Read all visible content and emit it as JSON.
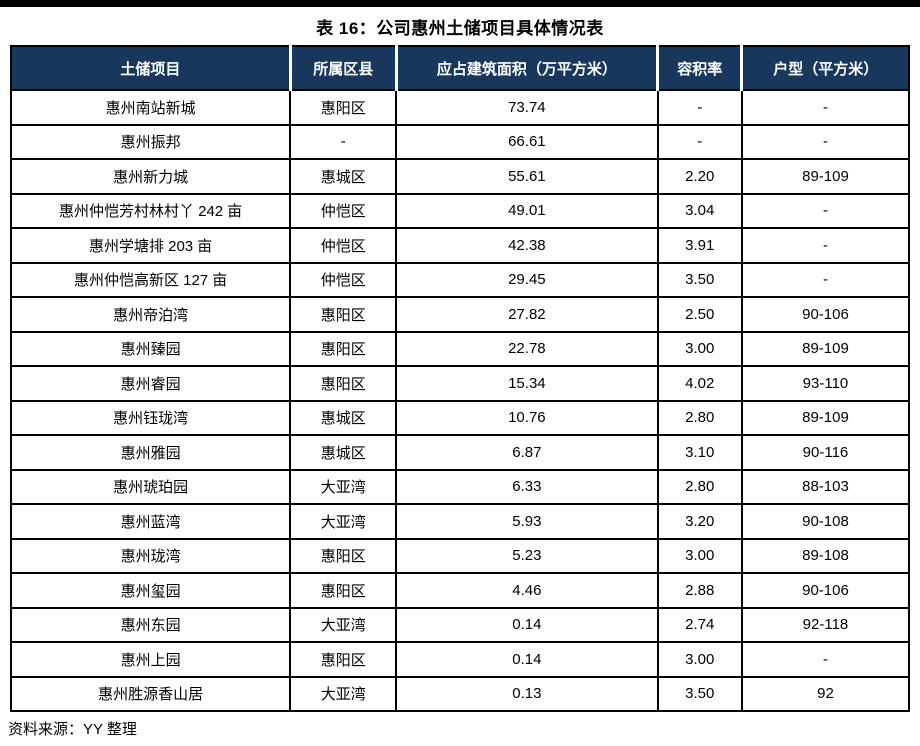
{
  "title": "表 16：公司惠州土储项目具体情况表",
  "source_note": "资料来源：YY 整理",
  "colors": {
    "header_bg": "#17375C",
    "header_text": "#FFFFFF",
    "border": "#000000",
    "rule_bar": "#000000"
  },
  "table": {
    "headers": [
      "土储项目",
      "所属区县",
      "应占建筑面积（万平方米）",
      "容积率",
      "户型（平方米）"
    ],
    "rows": [
      [
        "惠州南站新城",
        "惠阳区",
        "73.74",
        "-",
        "-"
      ],
      [
        "惠州振邦",
        "-",
        "66.61",
        "-",
        "-"
      ],
      [
        "惠州新力城",
        "惠城区",
        "55.61",
        "2.20",
        "89-109"
      ],
      [
        "惠州仲恺芳村林村丫 242 亩",
        "仲恺区",
        "49.01",
        "3.04",
        "-"
      ],
      [
        "惠州学塘排 203 亩",
        "仲恺区",
        "42.38",
        "3.91",
        "-"
      ],
      [
        "惠州仲恺高新区 127 亩",
        "仲恺区",
        "29.45",
        "3.50",
        "-"
      ],
      [
        "惠州帝泊湾",
        "惠阳区",
        "27.82",
        "2.50",
        "90-106"
      ],
      [
        "惠州臻园",
        "惠阳区",
        "22.78",
        "3.00",
        "89-109"
      ],
      [
        "惠州睿园",
        "惠阳区",
        "15.34",
        "4.02",
        "93-110"
      ],
      [
        "惠州钰珑湾",
        "惠城区",
        "10.76",
        "2.80",
        "89-109"
      ],
      [
        "惠州雅园",
        "惠城区",
        "6.87",
        "3.10",
        "90-116"
      ],
      [
        "惠州琥珀园",
        "大亚湾",
        "6.33",
        "2.80",
        "88-103"
      ],
      [
        "惠州蓝湾",
        "大亚湾",
        "5.93",
        "3.20",
        "90-108"
      ],
      [
        "惠州珑湾",
        "惠阳区",
        "5.23",
        "3.00",
        "89-108"
      ],
      [
        "惠州玺园",
        "惠阳区",
        "4.46",
        "2.88",
        "90-106"
      ],
      [
        "惠州东园",
        "大亚湾",
        "0.14",
        "2.74",
        "92-118"
      ],
      [
        "惠州上园",
        "惠阳区",
        "0.14",
        "3.00",
        "-"
      ],
      [
        "惠州胜源香山居",
        "大亚湾",
        "0.13",
        "3.50",
        "92"
      ]
    ]
  }
}
